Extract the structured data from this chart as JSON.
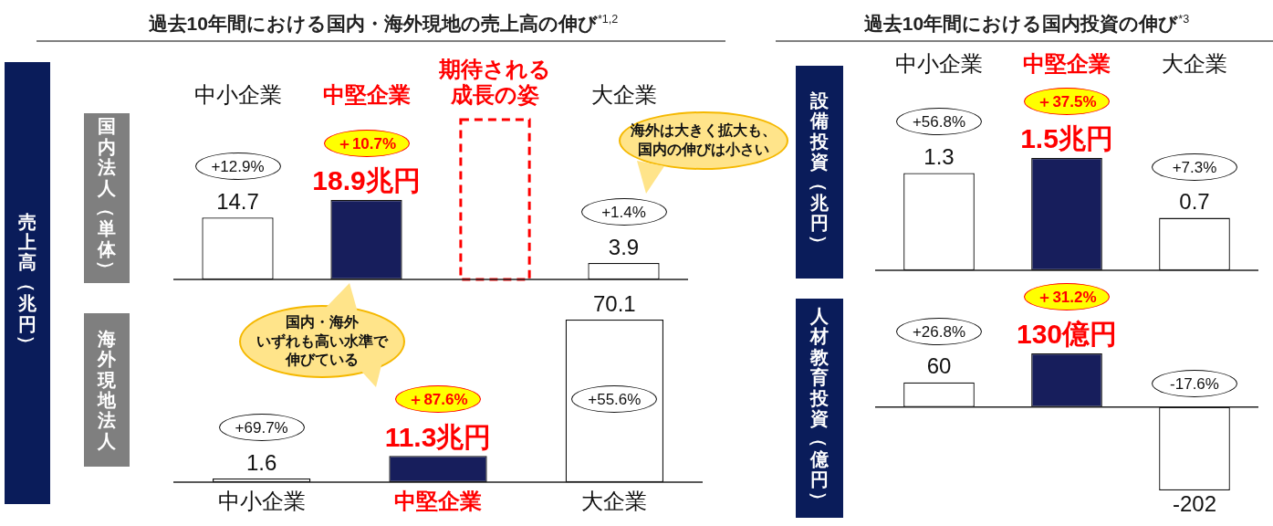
{
  "chart_data": [
    {
      "type": "bar",
      "title": "過去10年間における国内・海外現地の売上高の伸び$^{*1,2}$",
      "subtitle": "国内法人（単体）",
      "ylabel": "売上高（兆円）",
      "categories": [
        "中小企業",
        "中堅企業",
        "期待される成長の姿",
        "大企業"
      ],
      "series": [
        {
          "values": [
            14.7,
            18.9,
            null,
            3.9
          ],
          "colors": [
            "#ffffff",
            "#171e5c",
            "#ffffff",
            "#ffffff"
          ],
          "value_labels": [
            "14.7",
            "18.9兆円",
            null,
            "3.9"
          ]
        },
        {
          "values": [
            null,
            null,
            38,
            null
          ],
          "color": "#ff0000",
          "line_style": "dashed"
        }
      ],
      "tick_labels": "x",
      "annotations": [
        "+12.9%",
        "＋10.7%",
        "+1.4%",
        "海外は大きく拡大も、国内の伸びは小さい"
      ]
    },
    {
      "type": "bar",
      "subtitle": "海外現地法人",
      "categories": [
        "中小企業",
        "中堅企業",
        "大企業"
      ],
      "values": [
        1.6,
        11.3,
        70.1
      ],
      "colors": [
        "#ffffff",
        "#171e5c",
        "#ffffff"
      ],
      "value_labels": [
        "1.6",
        "11.3兆円",
        "70.1"
      ],
      "tick_labels": "x",
      "annotations": [
        "+69.7%",
        "＋87.6%",
        "+55.6%",
        "国内・海外いずれも高い水準で伸びている"
      ]
    },
    {
      "type": "bar",
      "title": "過去10年間における国内投資の伸び$^{*3}$",
      "ylabel": "設備投資（兆円）",
      "categories": [
        "中小企業",
        "中堅企業",
        "大企業"
      ],
      "values": [
        1.3,
        1.5,
        0.7
      ],
      "colors": [
        "#ffffff",
        "#171e5c",
        "#ffffff"
      ],
      "value_labels": [
        "1.3",
        "1.5兆円",
        "0.7"
      ],
      "tick_labels": "x",
      "annotations": [
        "+56.8%",
        "＋37.5%",
        "+7.3%"
      ]
    },
    {
      "type": "bar",
      "ylabel": "人材教育投資（億円）",
      "categories": [
        "中小企業",
        "中堅企業",
        "大企業"
      ],
      "values": [
        60,
        130,
        -202
      ],
      "colors": [
        "#ffffff",
        "#171e5c",
        "#ffffff"
      ],
      "value_labels": [
        "60",
        "130億円",
        "-202"
      ],
      "tick_labels": false,
      "annotations": [
        "+26.8%",
        "＋31.2%",
        "-17.6%"
      ]
    }
  ]
}
